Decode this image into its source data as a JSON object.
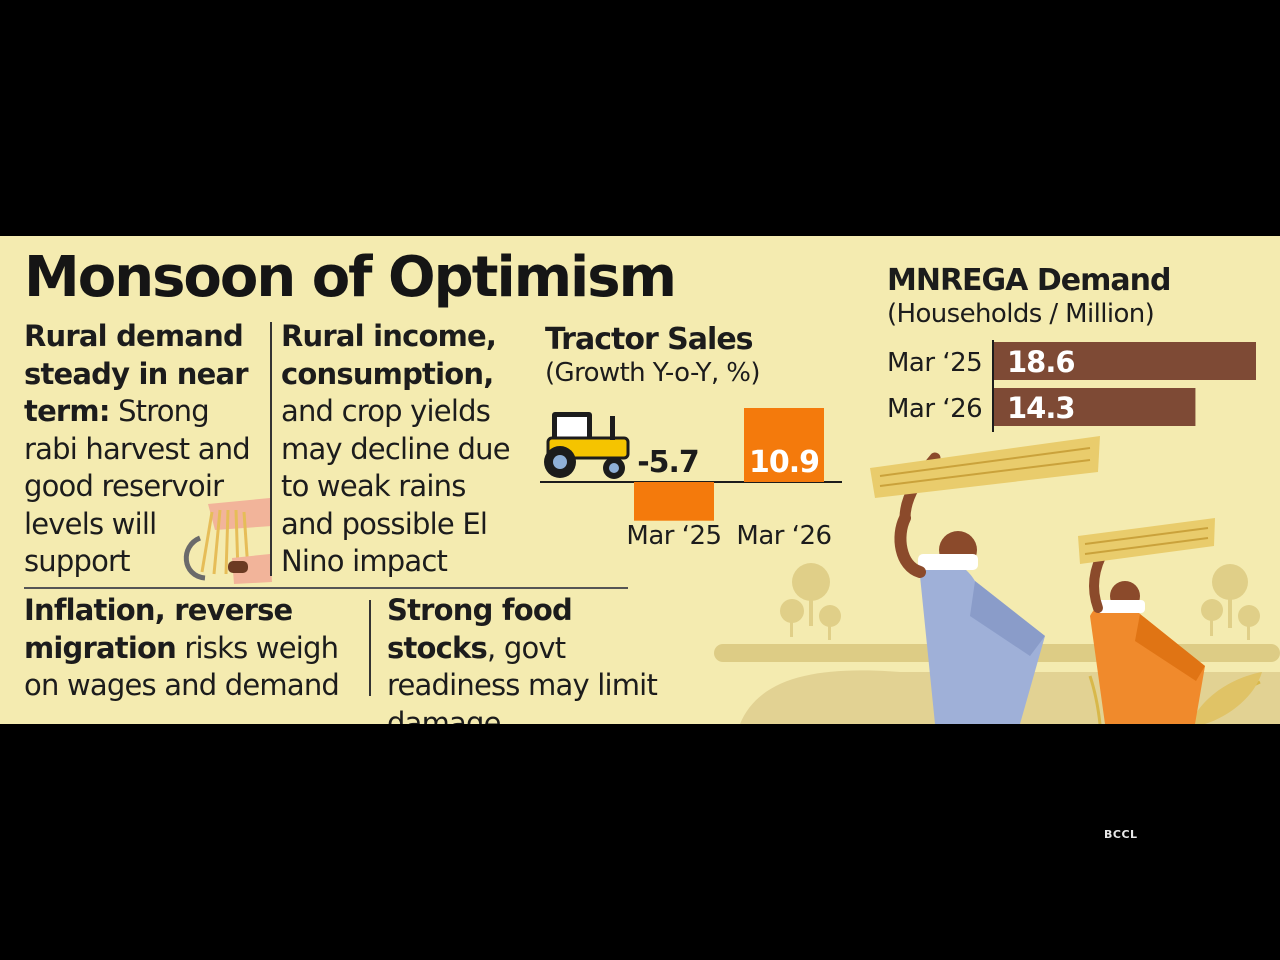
{
  "headline": "Monsoon of Optimism",
  "blocks": {
    "rural_demand": {
      "bold": "Rural demand steady in near term:",
      "rest": " Strong rabi harvest and good reservoir levels will support"
    },
    "rural_income": {
      "bold": "Rural income, consumption,",
      "rest": " and crop yields may decline due to weak rains and possible El Nino impact"
    },
    "inflation": {
      "bold": "Inflation, reverse migration",
      "rest": " risks weigh on wages and demand"
    },
    "food_stocks": {
      "bold": "Strong food stocks",
      "rest": ", govt readiness may limit damage"
    }
  },
  "tractor": {
    "title": "Tractor Sales",
    "subtitle": "(Growth Y-o-Y, %)"
  },
  "mnrega": {
    "title": "MNREGA Demand",
    "subtitle": "(Households / Million)"
  },
  "credit": "BCCL",
  "colors": {
    "background": "#f4ebb0",
    "tractor_bar": "#f47a0c",
    "mnrega_bar": "#7e4a35",
    "text": "#1c1c1c"
  },
  "icons": [
    "tractor-icon",
    "hands-sickle-icon",
    "farmers-carrying-wheat-illustration",
    "trees-illustration"
  ],
  "chart_data": [
    {
      "type": "bar",
      "title": "Tractor Sales",
      "subtitle": "(Growth Y-o-Y, %)",
      "categories": [
        "Mar ‘25",
        "Mar ‘26"
      ],
      "values": [
        -5.7,
        10.9
      ],
      "value_labels": [
        "-5.7",
        "10.9"
      ],
      "orientation": "vertical",
      "ylim": [
        -5.7,
        10.9
      ],
      "grid": false
    },
    {
      "type": "bar",
      "title": "MNREGA Demand",
      "subtitle": "(Households / Million)",
      "categories": [
        "Mar ‘25",
        "Mar ‘26"
      ],
      "values": [
        18.6,
        14.3
      ],
      "value_labels": [
        "18.6",
        "14.3"
      ],
      "orientation": "horizontal",
      "grid": false
    }
  ]
}
